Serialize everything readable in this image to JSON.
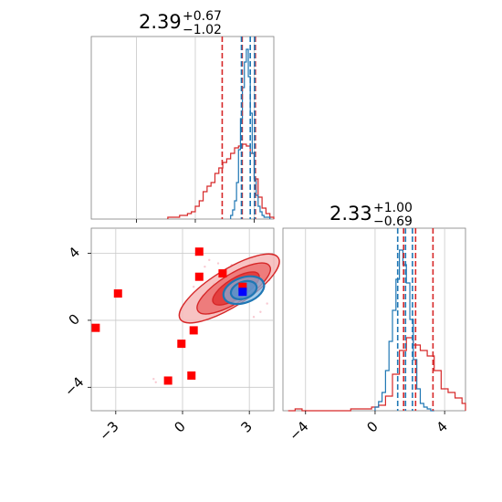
{
  "chart_data": [
    {
      "panel": "top-left",
      "type": "histogram",
      "title": {
        "value": "2.39",
        "sup": "+0.67",
        "sub": "−1.02"
      },
      "xlim": [
        -5.3,
        4.0
      ],
      "ylim": [
        0,
        1.0
      ],
      "grid": true,
      "series": [
        {
          "color": "#d62728",
          "bin_edges": [
            -1.4,
            -1.2,
            -1.0,
            -0.8,
            -0.6,
            -0.4,
            -0.2,
            0.0,
            0.2,
            0.4,
            0.6,
            0.8,
            1.0,
            1.2,
            1.4,
            1.6,
            1.8,
            2.0,
            2.2,
            2.4,
            2.6,
            2.8,
            3.0,
            3.2,
            3.4,
            3.6,
            3.8,
            4.0
          ],
          "heights": [
            0.01,
            0.01,
            0.01,
            0.02,
            0.02,
            0.03,
            0.04,
            0.07,
            0.1,
            0.15,
            0.18,
            0.2,
            0.25,
            0.28,
            0.31,
            0.33,
            0.36,
            0.39,
            0.4,
            0.41,
            0.4,
            0.36,
            0.22,
            0.12,
            0.06,
            0.03,
            0.01
          ],
          "quantile_lines": [
            1.37,
            2.39,
            3.06
          ]
        },
        {
          "color": "#1f77b4",
          "bin_edges": [
            1.8,
            1.9,
            2.0,
            2.1,
            2.2,
            2.3,
            2.4,
            2.5,
            2.6,
            2.7,
            2.8,
            2.9,
            3.0,
            3.1,
            3.2,
            3.3,
            3.4,
            3.5,
            3.6,
            3.7,
            3.8
          ],
          "heights": [
            0.02,
            0.05,
            0.1,
            0.2,
            0.38,
            0.55,
            0.72,
            0.86,
            0.93,
            0.78,
            0.58,
            0.36,
            0.22,
            0.13,
            0.07,
            0.04,
            0.02,
            0.01,
            0.01,
            0.01
          ],
          "quantile_lines": [
            2.35,
            2.8,
            3.02
          ]
        }
      ]
    },
    {
      "panel": "bottom-left",
      "type": "scatter",
      "xlim": [
        -4.1,
        4.1
      ],
      "ylim": [
        -5.4,
        5.5
      ],
      "grid": true,
      "x_ticks": [
        "−3",
        "0",
        "3"
      ],
      "y_ticks": [
        "−4",
        "0",
        "4"
      ],
      "red_points": [
        {
          "x": 0.75,
          "y": 4.1
        },
        {
          "x": -2.9,
          "y": 1.6
        },
        {
          "x": -3.9,
          "y": -0.45
        },
        {
          "x": 0.75,
          "y": 2.6
        },
        {
          "x": 1.8,
          "y": 2.8
        },
        {
          "x": 2.7,
          "y": 2.0
        },
        {
          "x": 0.5,
          "y": -0.6
        },
        {
          "x": -0.05,
          "y": -1.4
        },
        {
          "x": 0.4,
          "y": -3.3
        },
        {
          "x": -0.65,
          "y": -3.6
        }
      ],
      "blue_points": [
        {
          "x": 2.7,
          "y": 1.7
        }
      ],
      "red_contours": [
        {
          "cx": 2.1,
          "cy": 1.9,
          "rx": 2.6,
          "ry": 1.1,
          "angle": -32
        },
        {
          "cx": 2.3,
          "cy": 1.9,
          "rx": 1.9,
          "ry": 0.85,
          "angle": -32
        },
        {
          "cx": 2.4,
          "cy": 1.9,
          "rx": 1.2,
          "ry": 0.6,
          "angle": -32
        }
      ],
      "blue_contours": [
        {
          "cx": 2.75,
          "cy": 1.8,
          "rx": 0.95,
          "ry": 0.75,
          "angle": -20
        },
        {
          "cx": 2.75,
          "cy": 1.8,
          "rx": 0.6,
          "ry": 0.5,
          "angle": -20
        }
      ]
    },
    {
      "panel": "bottom-right",
      "type": "histogram",
      "title": {
        "value": "2.33",
        "sup": "+1.00",
        "sub": "−0.69"
      },
      "xlim": [
        -5.3,
        5.2
      ],
      "ylim": [
        0,
        1.0
      ],
      "grid": true,
      "x_ticks": [
        "−4",
        "0",
        "4"
      ],
      "series": [
        {
          "color": "#d62728",
          "bin_edges": [
            -5.0,
            -4.6,
            -4.2,
            -3.8,
            -3.4,
            -3.0,
            -2.6,
            -2.2,
            -1.8,
            -1.4,
            -1.0,
            -0.6,
            -0.2,
            0.2,
            0.6,
            1.0,
            1.4,
            1.8,
            2.2,
            2.6,
            3.0,
            3.4,
            3.8,
            4.2,
            4.6,
            5.0,
            5.2
          ],
          "heights": [
            0.0,
            0.01,
            0.0,
            0.0,
            0.0,
            0.0,
            0.0,
            0.0,
            0.0,
            0.01,
            0.01,
            0.01,
            0.02,
            0.03,
            0.08,
            0.2,
            0.33,
            0.4,
            0.36,
            0.33,
            0.3,
            0.22,
            0.12,
            0.1,
            0.07,
            0.04
          ],
          "quantile_lines": [
            1.64,
            2.33,
            3.33
          ]
        },
        {
          "color": "#1f77b4",
          "bin_edges": [
            0.0,
            0.2,
            0.4,
            0.6,
            0.8,
            1.0,
            1.2,
            1.4,
            1.6,
            1.8,
            2.0,
            2.2,
            2.4,
            2.6,
            2.8,
            3.0,
            3.2,
            3.4
          ],
          "heights": [
            0.02,
            0.05,
            0.1,
            0.22,
            0.38,
            0.55,
            0.72,
            0.88,
            0.8,
            0.7,
            0.5,
            0.28,
            0.12,
            0.04,
            0.02,
            0.01,
            0.0
          ],
          "quantile_lines": [
            1.3,
            1.75,
            2.15
          ]
        }
      ]
    }
  ]
}
